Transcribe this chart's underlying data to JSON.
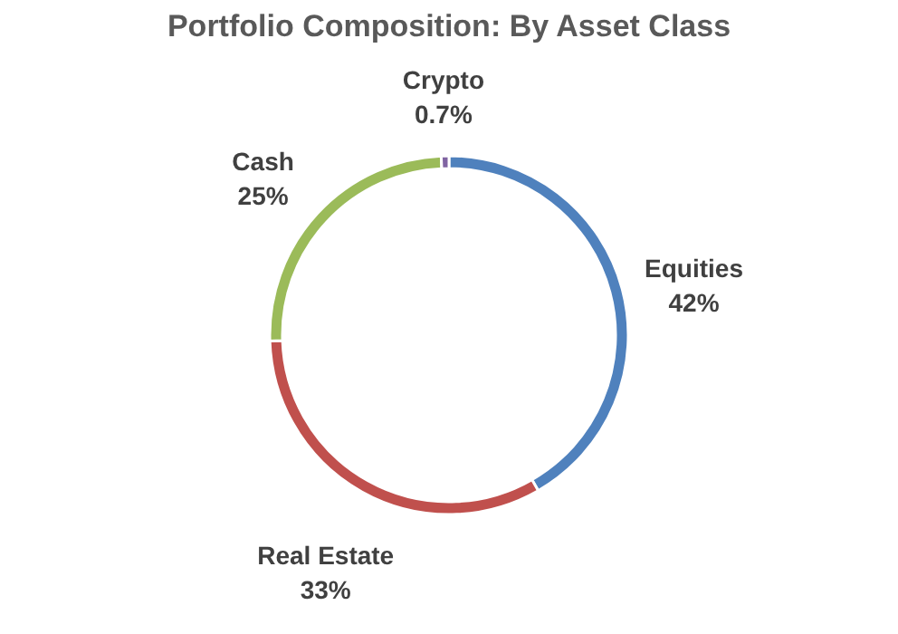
{
  "chart_data": {
    "type": "donut",
    "title": "Portfolio Composition: By Asset Class",
    "categories": [
      "Equities",
      "Real Estate",
      "Cash",
      "Crypto"
    ],
    "values": [
      42,
      33,
      25,
      0.7
    ],
    "value_labels": [
      "42%",
      "33%",
      "25%",
      "0.7%"
    ],
    "colors": [
      "#4f81bd",
      "#c0504d",
      "#9bbb59",
      "#8064a2"
    ],
    "legend": false
  }
}
